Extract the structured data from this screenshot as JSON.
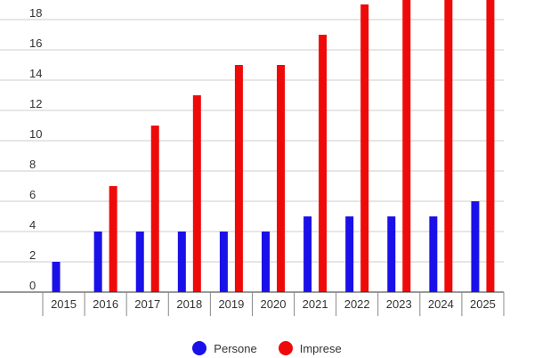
{
  "chart_data": {
    "type": "bar",
    "title": "",
    "xlabel": "",
    "ylabel": "",
    "categories": [
      "2015",
      "2016",
      "2017",
      "2018",
      "2019",
      "2020",
      "2021",
      "2022",
      "2023",
      "2024",
      "2025"
    ],
    "series": [
      {
        "name": "Persone",
        "color": "#1a10e8",
        "values": [
          2,
          4,
          4,
          4,
          4,
          4,
          5,
          5,
          5,
          5,
          6
        ]
      },
      {
        "name": "Imprese",
        "color": "#ef0a0a",
        "values": [
          null,
          7,
          11,
          13,
          15,
          15,
          17,
          19,
          20,
          20,
          20
        ]
      }
    ],
    "ylim": [
      0,
      20
    ],
    "yticks": [
      0,
      2,
      4,
      6,
      8,
      10,
      12,
      14,
      16,
      18
    ],
    "grid": true,
    "legend_position": "bottom"
  }
}
